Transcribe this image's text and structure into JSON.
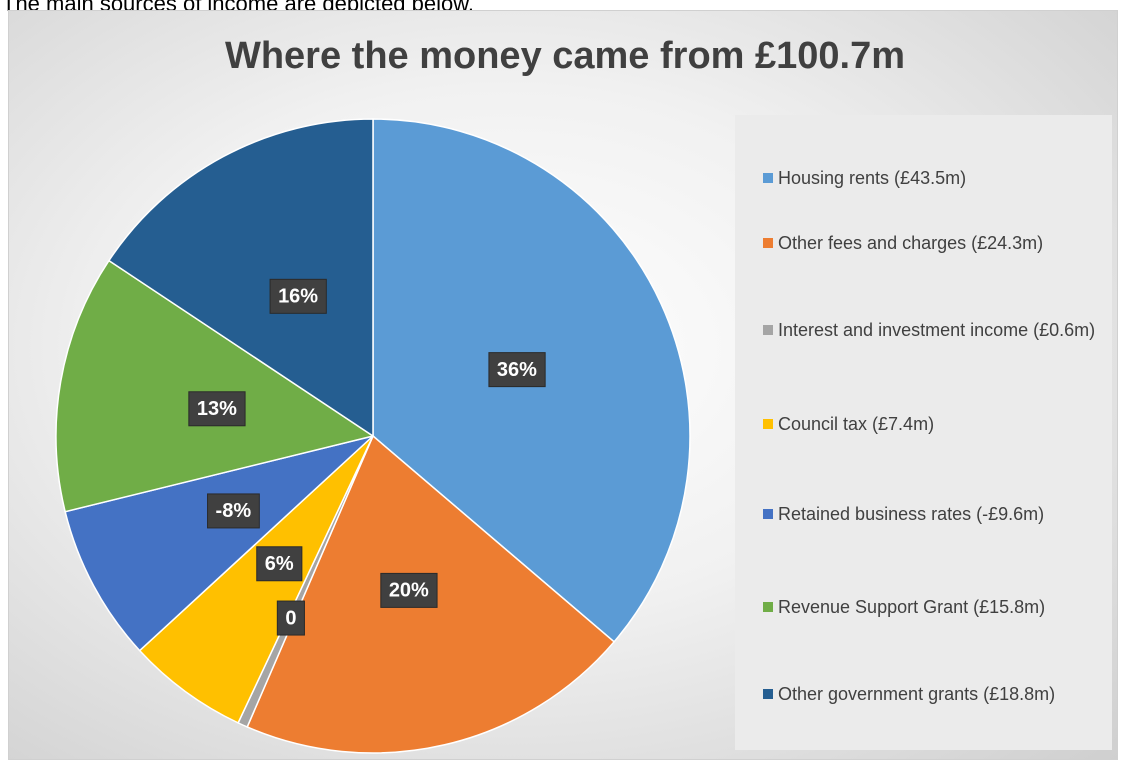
{
  "intro": "The main sources of income are depicted below.",
  "chart_data": {
    "type": "pie",
    "title": "Where the money came from £100.7m",
    "categories": [
      "Housing rents (£43.5m)",
      "Other fees and charges (£24.3m)",
      "Interest and investment income (£0.6m)",
      "Council tax (£7.4m)",
      "Retained business rates (-£9.6m)",
      "Revenue Support Grant (£15.8m)",
      "Other government grants (£18.8m)"
    ],
    "values": [
      36.25,
      20.25,
      0.5,
      6.17,
      -8,
      13.17,
      15.67
    ],
    "value_labels": [
      "36%",
      "20%",
      "0",
      "6%",
      "-8%",
      "13%",
      "16%"
    ],
    "colors": [
      "#5b9bd5",
      "#ed7d31",
      "#a5a5a5",
      "#ffc000",
      "#4472c4",
      "#70ad47",
      "#255e91"
    ],
    "legend": "right"
  }
}
